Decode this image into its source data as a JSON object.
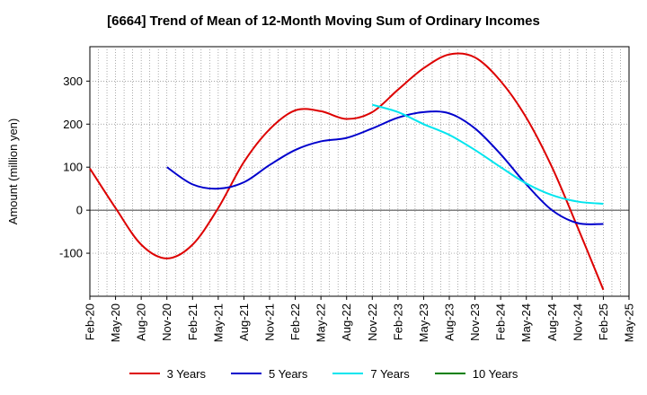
{
  "chart_data": {
    "type": "line",
    "title": "[6664]  Trend of Mean of 12-Month Moving Sum of Ordinary Incomes",
    "xlabel": "",
    "ylabel": "Amount (million yen)",
    "ylim": [
      -200,
      380
    ],
    "yticks": [
      -100,
      0,
      100,
      200,
      300
    ],
    "x_categories": [
      "Feb-20",
      "May-20",
      "Aug-20",
      "Nov-20",
      "Feb-21",
      "May-21",
      "Aug-21",
      "Nov-21",
      "Feb-22",
      "May-22",
      "Aug-22",
      "Nov-22",
      "Feb-23",
      "May-23",
      "Aug-23",
      "Nov-23",
      "Feb-24",
      "May-24",
      "Aug-24",
      "Nov-24",
      "Feb-25",
      "May-25"
    ],
    "grid": true,
    "legend_position": "bottom",
    "series": [
      {
        "name": "3 Years",
        "color": "#dd0000",
        "points": [
          [
            0,
            97
          ],
          [
            1,
            5
          ],
          [
            2,
            -80
          ],
          [
            3,
            -112
          ],
          [
            4,
            -80
          ],
          [
            5,
            5
          ],
          [
            6,
            112
          ],
          [
            7,
            188
          ],
          [
            8,
            232
          ],
          [
            9,
            230
          ],
          [
            10,
            212
          ],
          [
            11,
            228
          ],
          [
            12,
            280
          ],
          [
            13,
            330
          ],
          [
            14,
            362
          ],
          [
            15,
            355
          ],
          [
            16,
            300
          ],
          [
            17,
            215
          ],
          [
            18,
            100
          ],
          [
            19,
            -40
          ],
          [
            20,
            -185
          ]
        ]
      },
      {
        "name": "5 Years",
        "color": "#0000cc",
        "points": [
          [
            3,
            100
          ],
          [
            4,
            60
          ],
          [
            5,
            50
          ],
          [
            6,
            65
          ],
          [
            7,
            105
          ],
          [
            8,
            140
          ],
          [
            9,
            160
          ],
          [
            10,
            168
          ],
          [
            11,
            190
          ],
          [
            12,
            215
          ],
          [
            13,
            228
          ],
          [
            14,
            225
          ],
          [
            15,
            190
          ],
          [
            16,
            130
          ],
          [
            17,
            60
          ],
          [
            18,
            0
          ],
          [
            19,
            -30
          ],
          [
            20,
            -32
          ]
        ]
      },
      {
        "name": "7 Years",
        "color": "#00e5ee",
        "points": [
          [
            11,
            245
          ],
          [
            12,
            228
          ],
          [
            13,
            200
          ],
          [
            14,
            175
          ],
          [
            15,
            140
          ],
          [
            16,
            100
          ],
          [
            17,
            62
          ],
          [
            18,
            35
          ],
          [
            19,
            20
          ],
          [
            20,
            15
          ]
        ]
      },
      {
        "name": "10 Years",
        "color": "#008000",
        "points": []
      }
    ]
  }
}
